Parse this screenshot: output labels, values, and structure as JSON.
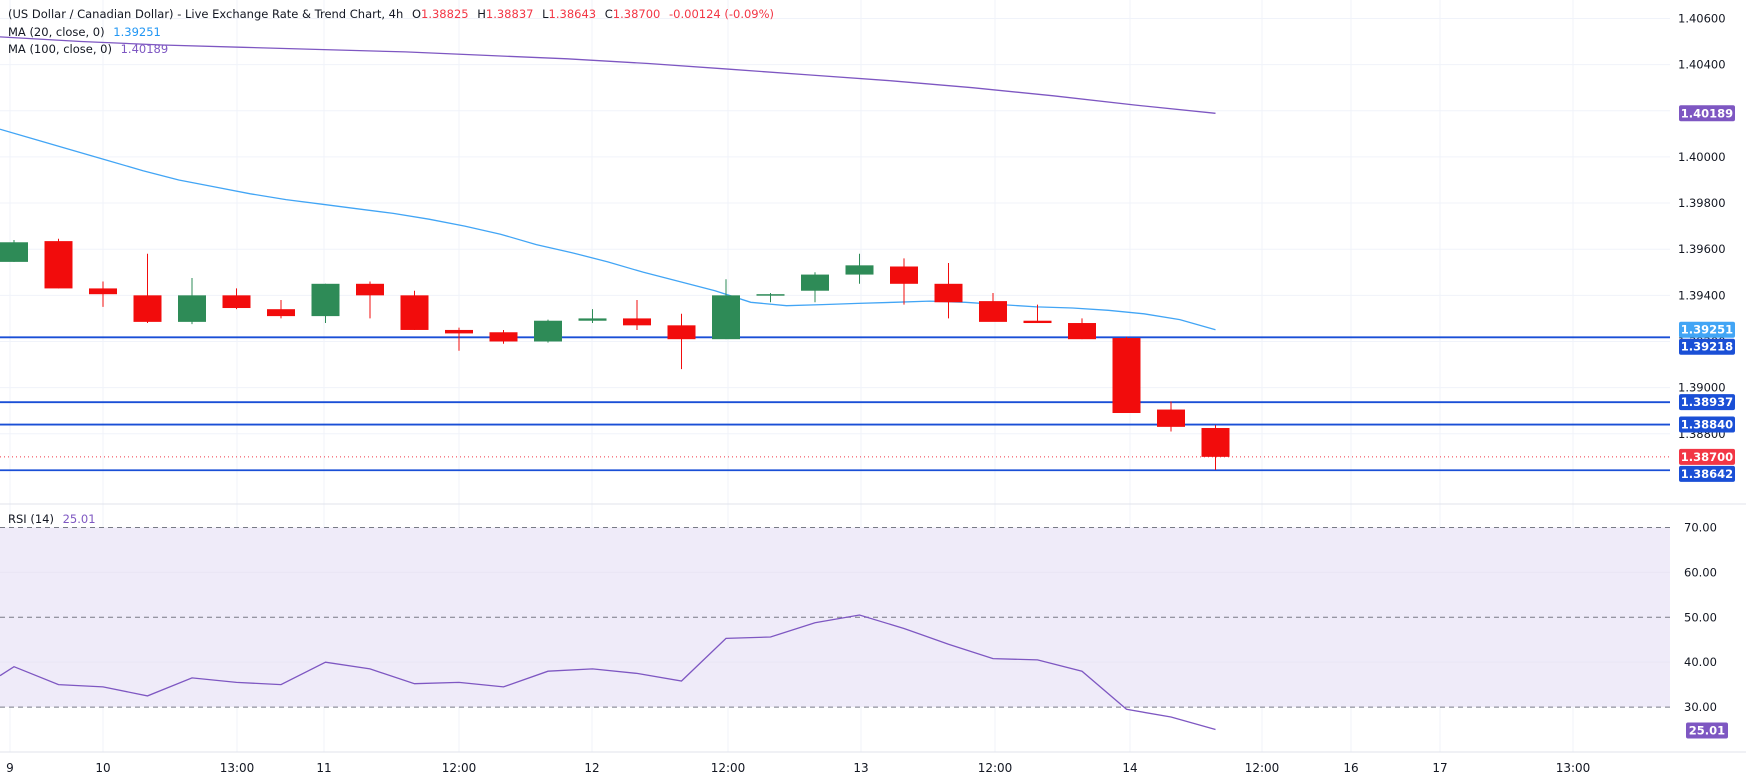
{
  "header": {
    "symbol": "(US Dollar / Canadian Dollar) - Live Exchange Rate & Trend Chart, 4h",
    "open_label": "O",
    "open": "1.38825",
    "high_label": "H",
    "high": "1.38837",
    "low_label": "L",
    "low": "1.38643",
    "close_label": "C",
    "close": "1.38700",
    "change": "-0.00124 (-0.09%)"
  },
  "indicators": {
    "ma20": {
      "label": "MA (20, close, 0)",
      "value": "1.39251"
    },
    "ma100": {
      "label": "MA (100, close, 0)",
      "value": "1.40189"
    },
    "rsi": {
      "label": "RSI (14)",
      "value": "25.01"
    }
  },
  "colors": {
    "up": "#2e8b57",
    "down": "#f20c0c",
    "ma20": "#42a5f5",
    "ma100": "#7e57c2",
    "hline": "#1a4fd6",
    "rsi": "#7e57c2",
    "rsi_band": "#efebf9",
    "current": "#f23645"
  },
  "chart_data": {
    "type": "candlestick",
    "price_ylim": [
      1.385,
      1.4068
    ],
    "price_ticks": [
      "1.40600",
      "1.40400",
      "1.40200",
      "1.40000",
      "1.39800",
      "1.39600",
      "1.39400",
      "1.39200",
      "1.39000",
      "1.38800"
    ],
    "x_ticks": [
      "9",
      "10",
      "13:00",
      "11",
      "12:00",
      "12",
      "12:00",
      "13",
      "12:00",
      "14",
      "12:00",
      "16",
      "17",
      "13:00"
    ],
    "candles": [
      {
        "o": 1.39545,
        "h": 1.3964,
        "l": 1.39545,
        "c": 1.3963
      },
      {
        "o": 1.39635,
        "h": 1.39645,
        "l": 1.3943,
        "c": 1.3943
      },
      {
        "o": 1.3943,
        "h": 1.3946,
        "l": 1.3935,
        "c": 1.39405
      },
      {
        "o": 1.394,
        "h": 1.3958,
        "l": 1.3928,
        "c": 1.39285
      },
      {
        "o": 1.39285,
        "h": 1.39475,
        "l": 1.39275,
        "c": 1.394
      },
      {
        "o": 1.394,
        "h": 1.3943,
        "l": 1.3934,
        "c": 1.39345
      },
      {
        "o": 1.3934,
        "h": 1.3938,
        "l": 1.393,
        "c": 1.3931
      },
      {
        "o": 1.3931,
        "h": 1.3945,
        "l": 1.3928,
        "c": 1.3945
      },
      {
        "o": 1.3945,
        "h": 1.3946,
        "l": 1.393,
        "c": 1.394
      },
      {
        "o": 1.394,
        "h": 1.3942,
        "l": 1.3925,
        "c": 1.3925
      },
      {
        "o": 1.3925,
        "h": 1.3926,
        "l": 1.3916,
        "c": 1.39235
      },
      {
        "o": 1.3924,
        "h": 1.3925,
        "l": 1.3919,
        "c": 1.392
      },
      {
        "o": 1.392,
        "h": 1.39295,
        "l": 1.39195,
        "c": 1.3929
      },
      {
        "o": 1.3929,
        "h": 1.3934,
        "l": 1.3928,
        "c": 1.393
      },
      {
        "o": 1.393,
        "h": 1.3938,
        "l": 1.3925,
        "c": 1.3927
      },
      {
        "o": 1.3927,
        "h": 1.3932,
        "l": 1.3908,
        "c": 1.3921
      },
      {
        "o": 1.3921,
        "h": 1.3947,
        "l": 1.3921,
        "c": 1.394
      },
      {
        "o": 1.394,
        "h": 1.3941,
        "l": 1.3937,
        "c": 1.39405
      },
      {
        "o": 1.3942,
        "h": 1.395,
        "l": 1.3937,
        "c": 1.3949
      },
      {
        "o": 1.3949,
        "h": 1.3958,
        "l": 1.3945,
        "c": 1.3953
      },
      {
        "o": 1.39525,
        "h": 1.3956,
        "l": 1.3936,
        "c": 1.3945
      },
      {
        "o": 1.3945,
        "h": 1.3954,
        "l": 1.393,
        "c": 1.3937
      },
      {
        "o": 1.39375,
        "h": 1.3941,
        "l": 1.3929,
        "c": 1.39285
      },
      {
        "o": 1.3929,
        "h": 1.3936,
        "l": 1.3928,
        "c": 1.3928
      },
      {
        "o": 1.3928,
        "h": 1.393,
        "l": 1.3921,
        "c": 1.3921
      },
      {
        "o": 1.39215,
        "h": 1.3922,
        "l": 1.3889,
        "c": 1.3889
      },
      {
        "o": 1.38905,
        "h": 1.3894,
        "l": 1.3881,
        "c": 1.3883
      },
      {
        "o": 1.38825,
        "h": 1.38837,
        "l": 1.38643,
        "c": 1.387
      }
    ],
    "ma20_values": [
      1.4012,
      1.40075,
      1.4003,
      1.39985,
      1.3994,
      1.399,
      1.3987,
      1.3984,
      1.39815,
      1.39795,
      1.39775,
      1.39755,
      1.3973,
      1.397,
      1.39665,
      1.3962,
      1.39585,
      1.39545,
      1.395,
      1.3946,
      1.3942,
      1.3937,
      1.39355,
      1.3936,
      1.39365,
      1.3937,
      1.39375,
      1.3937,
      1.3936,
      1.3935,
      1.39345,
      1.39335,
      1.3932,
      1.39295,
      1.39251
    ],
    "ma100_values": [
      1.4052,
      1.405,
      1.40485,
      1.40475,
      1.40465,
      1.40455,
      1.4044,
      1.40425,
      1.40405,
      1.4038,
      1.40355,
      1.4033,
      1.403,
      1.40265,
      1.40225,
      1.40189
    ],
    "horizontal_levels": [
      1.39218,
      1.38937,
      1.3884,
      1.38642
    ],
    "price_labels": [
      {
        "text": "1.40189",
        "value": 1.40189,
        "color": "#7e57c2"
      },
      {
        "text": "1.39251",
        "value": 1.39251,
        "color": "#42a5f5"
      },
      {
        "text": "1.39218",
        "value": 1.39218,
        "color": "#1a4fd6"
      },
      {
        "text": "1.38937",
        "value": 1.38937,
        "color": "#1a4fd6"
      },
      {
        "text": "1.38840",
        "value": 1.3884,
        "color": "#1a4fd6"
      },
      {
        "text": "1.38700",
        "value": 1.387,
        "color": "#f23645"
      },
      {
        "text": "1.38642",
        "value": 1.38642,
        "color": "#1a4fd6"
      }
    ],
    "rsi_ylim": [
      20,
      75
    ],
    "rsi_ticks": [
      "70.00",
      "60.00",
      "50.00",
      "40.00",
      "30.00"
    ],
    "rsi_band": [
      30,
      70
    ],
    "rsi_values": [
      37.0,
      39.0,
      35.0,
      34.5,
      32.5,
      36.5,
      35.5,
      35.0,
      40.0,
      38.5,
      35.2,
      35.5,
      34.5,
      38.0,
      38.5,
      37.5,
      35.8,
      45.3,
      45.6,
      48.8,
      50.5,
      47.5,
      44.0,
      40.8,
      40.5,
      38.0,
      29.5,
      27.8,
      25.01
    ],
    "rsi_last_label": "25.01",
    "grid": true
  }
}
